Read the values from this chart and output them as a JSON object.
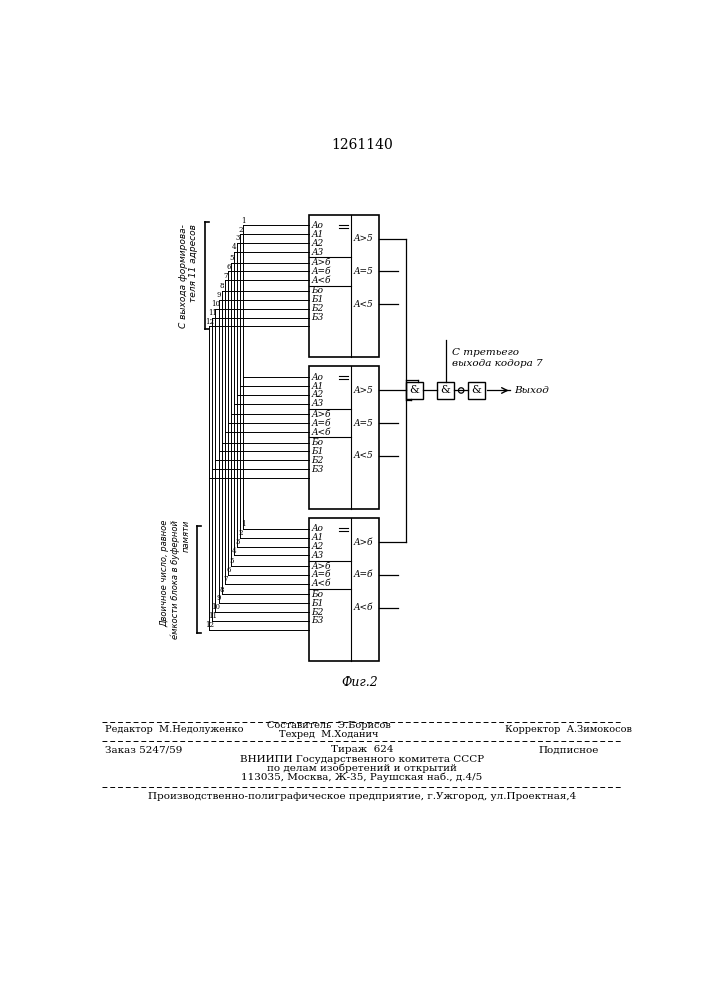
{
  "title": "1261140",
  "fig_caption": "Фиг.2",
  "background_color": "#ffffff",
  "label_top": "С выхода формирова-\nтеля 11 адресов",
  "label_bottom": "Двоичное число, равное\nе́мкости блока в буферной\nпамяти",
  "label_output": "Выход",
  "label_coder": "С третьего\nвыхода кодора 7",
  "footer_editor": "Редактор  М.Недолуженко",
  "footer_comp": "Составитель  Э.Борисов",
  "footer_tech": "Техред  М.Ходанич",
  "footer_corr": "Корректор  А.Зимокосов",
  "footer_order": "Заказ 5247/59",
  "footer_tirazh": "Тираж  624",
  "footer_podp": "Подписное",
  "footer_vniip1": "ВНИИПИ Государственного комитета СССР",
  "footer_vniip2": "по делам изобретений и открытий",
  "footer_addr": "113035, Москва, Ж-35, Раушская наб., д.4/5",
  "footer_plant": "Производственно-полиграфическое предприятие, г.Ужгород, ул.Проектная,4"
}
